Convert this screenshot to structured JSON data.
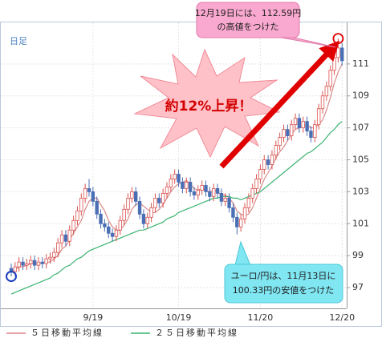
{
  "chart_data": {
    "type": "candlestick",
    "label": "日足",
    "categories": [
      null,
      null,
      null,
      null,
      null,
      null,
      null,
      null,
      null,
      null,
      null,
      null,
      null,
      null,
      null,
      null,
      null,
      null,
      null,
      null,
      null,
      "9/19",
      null,
      null,
      null,
      null,
      null,
      null,
      null,
      null,
      null,
      null,
      null,
      null,
      null,
      null,
      null,
      null,
      null,
      null,
      null,
      null,
      null,
      "10/19",
      null,
      null,
      null,
      null,
      null,
      null,
      null,
      null,
      null,
      null,
      null,
      null,
      null,
      null,
      null,
      null,
      null,
      null,
      null,
      null,
      "11/20",
      null,
      null,
      null,
      null,
      null,
      null,
      null,
      null,
      null,
      null,
      null,
      null,
      null,
      null,
      null,
      null,
      null,
      null,
      null,
      null,
      "12/20"
    ],
    "open": [
      98.2,
      98.0,
      98.3,
      98.6,
      98.4,
      98.5,
      98.7,
      98.4,
      98.6,
      98.5,
      98.8,
      98.9,
      99.2,
      99.8,
      100.3,
      99.9,
      100.6,
      101.2,
      101.8,
      102.6,
      103.2,
      103.0,
      102.4,
      101.6,
      101.0,
      100.8,
      100.4,
      100.2,
      100.6,
      101.2,
      101.9,
      102.6,
      103.0,
      102.4,
      101.6,
      101.0,
      101.4,
      102.0,
      102.6,
      102.3,
      102.9,
      103.3,
      103.8,
      104.1,
      103.6,
      103.2,
      103.6,
      103.0,
      102.8,
      103.1,
      103.4,
      103.0,
      102.7,
      103.2,
      102.9,
      102.4,
      102.6,
      102.0,
      101.4,
      100.8,
      101.3,
      102.0,
      102.6,
      103.2,
      103.8,
      104.4,
      105.0,
      104.7,
      105.3,
      105.9,
      106.4,
      106.9,
      106.5,
      107.2,
      107.6,
      107.0,
      107.4,
      106.8,
      106.4,
      107.2,
      108.2,
      109.0,
      109.6,
      110.6,
      111.4,
      112.0
    ],
    "high": [
      98.5,
      98.6,
      98.9,
      98.9,
      98.8,
      99.0,
      99.0,
      98.9,
      98.9,
      99.1,
      99.2,
      99.5,
      100.1,
      100.6,
      100.6,
      100.9,
      101.5,
      102.1,
      102.9,
      103.5,
      103.8,
      103.3,
      102.7,
      101.9,
      101.3,
      101.1,
      100.7,
      100.9,
      101.5,
      102.2,
      102.9,
      103.3,
      103.3,
      102.7,
      101.9,
      101.7,
      102.3,
      102.9,
      102.9,
      103.2,
      103.6,
      104.1,
      104.4,
      104.4,
      103.9,
      103.9,
      103.9,
      103.3,
      103.4,
      103.7,
      103.7,
      103.3,
      103.5,
      103.5,
      103.2,
      102.9,
      102.9,
      102.3,
      101.7,
      101.6,
      102.3,
      102.9,
      103.5,
      104.1,
      104.7,
      105.3,
      105.3,
      105.6,
      106.2,
      106.7,
      107.2,
      107.2,
      107.5,
      107.9,
      107.9,
      107.7,
      107.7,
      107.1,
      107.5,
      108.5,
      109.3,
      109.9,
      110.9,
      111.7,
      112.59,
      112.3
    ],
    "low": [
      97.7,
      97.7,
      98.0,
      98.1,
      98.1,
      98.2,
      98.1,
      98.1,
      98.2,
      98.2,
      98.5,
      98.6,
      98.9,
      99.5,
      99.6,
      99.6,
      100.3,
      100.9,
      101.5,
      102.3,
      102.7,
      102.1,
      101.3,
      100.7,
      100.5,
      100.1,
      99.9,
      99.9,
      100.3,
      100.9,
      101.6,
      102.3,
      102.1,
      101.3,
      100.7,
      100.7,
      101.1,
      101.7,
      102.0,
      102.0,
      102.6,
      103.0,
      103.5,
      103.3,
      102.9,
      102.9,
      102.7,
      102.5,
      102.5,
      102.8,
      102.7,
      102.4,
      102.4,
      102.6,
      102.1,
      102.1,
      101.7,
      101.1,
      100.33,
      100.5,
      101.0,
      101.7,
      102.3,
      102.9,
      103.5,
      104.1,
      104.4,
      104.4,
      105.0,
      105.6,
      106.1,
      106.2,
      106.2,
      106.9,
      106.7,
      106.7,
      106.5,
      106.1,
      106.1,
      106.9,
      107.9,
      108.7,
      109.3,
      110.3,
      111.1,
      110.9
    ],
    "close": [
      98.0,
      98.3,
      98.6,
      98.4,
      98.5,
      98.7,
      98.4,
      98.6,
      98.5,
      98.8,
      98.9,
      99.2,
      99.8,
      100.3,
      99.9,
      100.6,
      101.2,
      101.8,
      102.6,
      103.2,
      103.0,
      102.4,
      101.6,
      101.0,
      100.8,
      100.4,
      100.2,
      100.6,
      101.2,
      101.9,
      102.6,
      103.0,
      102.4,
      101.6,
      101.0,
      101.4,
      102.0,
      102.6,
      102.3,
      102.9,
      103.3,
      103.8,
      104.1,
      103.6,
      103.2,
      103.6,
      103.0,
      102.8,
      103.1,
      103.4,
      103.0,
      102.7,
      103.2,
      102.9,
      102.4,
      102.6,
      102.0,
      101.4,
      100.8,
      101.3,
      102.0,
      102.6,
      103.2,
      103.8,
      104.4,
      105.0,
      104.7,
      105.3,
      105.9,
      106.4,
      106.9,
      106.5,
      107.2,
      107.6,
      107.0,
      107.4,
      106.8,
      106.4,
      107.2,
      108.2,
      109.0,
      109.6,
      110.6,
      111.4,
      112.0,
      111.2
    ],
    "up_color": "#d9534f",
    "down_color": "#4a6fb5",
    "series": [
      {
        "name": "５日移動平均線",
        "color": "#d98888",
        "values": [
          98.0,
          98.1,
          98.3,
          98.3,
          98.4,
          98.5,
          98.5,
          98.5,
          98.5,
          98.6,
          98.6,
          98.8,
          99.0,
          99.4,
          99.6,
          100.0,
          100.4,
          100.8,
          101.2,
          101.9,
          102.4,
          102.6,
          102.6,
          102.2,
          101.8,
          101.2,
          100.8,
          100.6,
          100.6,
          100.9,
          101.3,
          101.9,
          102.2,
          102.3,
          102.1,
          101.9,
          101.7,
          101.7,
          101.9,
          102.2,
          102.6,
          103.0,
          103.3,
          103.5,
          103.6,
          103.7,
          103.5,
          103.2,
          103.1,
          103.2,
          103.1,
          103.0,
          103.1,
          103.0,
          102.8,
          102.8,
          102.6,
          102.3,
          101.8,
          101.6,
          101.5,
          101.6,
          102.0,
          102.6,
          103.2,
          103.8,
          104.2,
          104.6,
          105.1,
          105.5,
          105.8,
          106.2,
          106.6,
          106.9,
          107.0,
          107.1,
          107.2,
          107.0,
          107.0,
          107.2,
          107.5,
          108.1,
          108.9,
          109.8,
          110.5,
          111.0
        ]
      },
      {
        "name": "２５日移動平均線",
        "color": "#3cb371",
        "values": [
          96.6,
          96.7,
          96.8,
          96.9,
          97.0,
          97.1,
          97.2,
          97.3,
          97.4,
          97.5,
          97.6,
          97.8,
          97.9,
          98.1,
          98.3,
          98.4,
          98.6,
          98.8,
          98.9,
          99.1,
          99.3,
          99.4,
          99.5,
          99.6,
          99.7,
          99.8,
          99.9,
          100.0,
          100.1,
          100.2,
          100.3,
          100.4,
          100.5,
          100.6,
          100.6,
          100.7,
          100.8,
          100.9,
          101.0,
          101.1,
          101.3,
          101.4,
          101.5,
          101.7,
          101.8,
          101.9,
          102.0,
          102.1,
          102.2,
          102.3,
          102.4,
          102.5,
          102.6,
          102.6,
          102.7,
          102.7,
          102.7,
          102.6,
          102.6,
          102.5,
          102.6,
          102.7,
          102.8,
          102.9,
          103.0,
          103.2,
          103.4,
          103.6,
          103.8,
          104.0,
          104.2,
          104.4,
          104.6,
          104.8,
          105.0,
          105.2,
          105.4,
          105.5,
          105.7,
          105.9,
          106.1,
          106.4,
          106.7,
          106.9,
          107.2,
          107.4
        ]
      }
    ],
    "ylim": [
      95.7,
      113.6
    ],
    "yticks": [
      97,
      99,
      101,
      103,
      105,
      107,
      109,
      111
    ],
    "grid": true,
    "annotations": {
      "high_callout": [
        "12月19日には、112.59円",
        "の高値をつけた"
      ],
      "rise_label": "約12%上昇！",
      "low_callout": [
        "ユーロ/円は、11月13日に",
        "100.33円の安値をつけた"
      ]
    }
  }
}
